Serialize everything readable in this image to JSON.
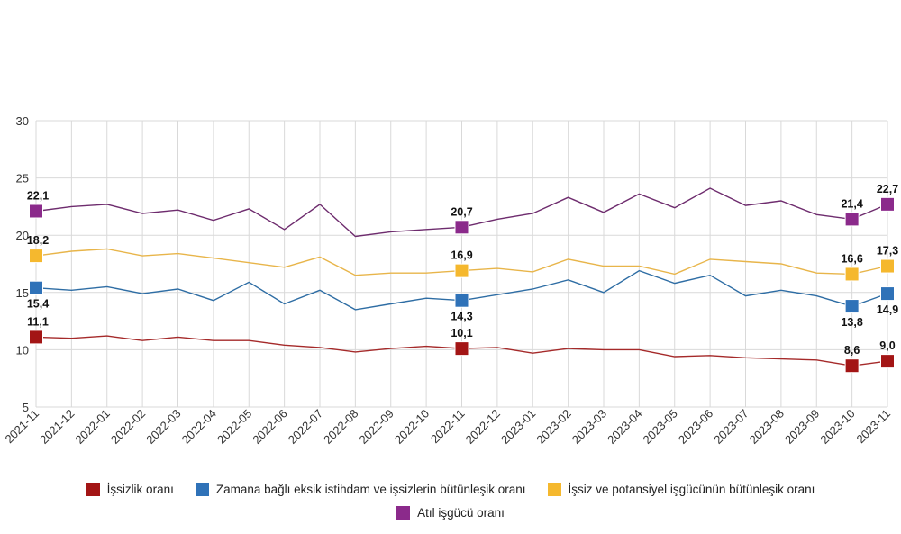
{
  "chart_data": {
    "type": "line",
    "title": "",
    "xlabel": "",
    "ylabel": "",
    "ylim": [
      5,
      30
    ],
    "yticks": [
      5,
      10,
      15,
      20,
      25,
      30
    ],
    "grid": true,
    "legend_placement": "bottom",
    "categories": [
      "2021-11",
      "2021-12",
      "2022-01",
      "2022-02",
      "2022-03",
      "2022-04",
      "2022-05",
      "2022-06",
      "2022-07",
      "2022-08",
      "2022-09",
      "2022-10",
      "2022-11",
      "2022-12",
      "2023-01",
      "2023-02",
      "2023-03",
      "2023-04",
      "2023-05",
      "2023-06",
      "2023-07",
      "2023-08",
      "2023-09",
      "2023-10",
      "2023-11"
    ],
    "series": [
      {
        "name": "İşsizlik oranı",
        "color": "#a52a2a",
        "marker_color": "#a31515",
        "values": [
          11.1,
          11.0,
          11.2,
          10.8,
          11.1,
          10.8,
          10.8,
          10.4,
          10.2,
          9.8,
          10.1,
          10.3,
          10.1,
          10.2,
          9.7,
          10.1,
          10.0,
          10.0,
          9.4,
          9.5,
          9.3,
          9.2,
          9.1,
          8.6,
          9.0
        ],
        "labels": {
          "0": "11,1",
          "12": "10,1",
          "23": "8,6",
          "24": "9,0"
        }
      },
      {
        "name": "Zamana bağlı eksik istihdam ve işsizlerin bütünleşik oranı",
        "color": "#2e6da4",
        "marker_color": "#2f72b8",
        "values": [
          15.4,
          15.2,
          15.5,
          14.9,
          15.3,
          14.3,
          15.9,
          14.0,
          15.2,
          13.5,
          14.0,
          14.5,
          14.3,
          14.8,
          15.3,
          16.1,
          15.0,
          16.9,
          15.8,
          16.5,
          14.7,
          15.2,
          14.7,
          13.8,
          14.9
        ],
        "labels": {
          "0": "15,4",
          "12": "14,3",
          "23": "13,8",
          "24": "14,9"
        }
      },
      {
        "name": "İşsiz ve potansiyel işgücünün bütünleşik oranı",
        "color": "#e8b54a",
        "marker_color": "#f5b82e",
        "values": [
          18.2,
          18.6,
          18.8,
          18.2,
          18.4,
          18.0,
          17.6,
          17.2,
          18.1,
          16.5,
          16.7,
          16.7,
          16.9,
          17.1,
          16.8,
          17.9,
          17.3,
          17.3,
          16.6,
          17.9,
          17.7,
          17.5,
          16.7,
          16.6,
          17.3
        ],
        "labels": {
          "0": "18,2",
          "12": "16,9",
          "23": "16,6",
          "24": "17,3"
        }
      },
      {
        "name": "Atıl işgücü oranı",
        "color": "#6e2c6e",
        "marker_color": "#8b2a8b",
        "values": [
          22.1,
          22.5,
          22.7,
          21.9,
          22.2,
          21.3,
          22.3,
          20.5,
          22.7,
          19.9,
          20.3,
          20.5,
          20.7,
          21.4,
          21.9,
          23.3,
          22.0,
          23.6,
          22.4,
          24.1,
          22.6,
          23.0,
          21.8,
          21.4,
          22.7
        ],
        "labels": {
          "0": "22,1",
          "12": "20,7",
          "23": "21,4",
          "24": "22,7"
        }
      }
    ]
  },
  "legend": {
    "item_1": "İşsizlik oranı",
    "item_2": "Zamana bağlı eksik istihdam ve işsizlerin bütünleşik oranı",
    "item_3": "İşsiz ve potansiyel işgücünün bütünleşik oranı",
    "item_4": "Atıl işgücü oranı"
  }
}
